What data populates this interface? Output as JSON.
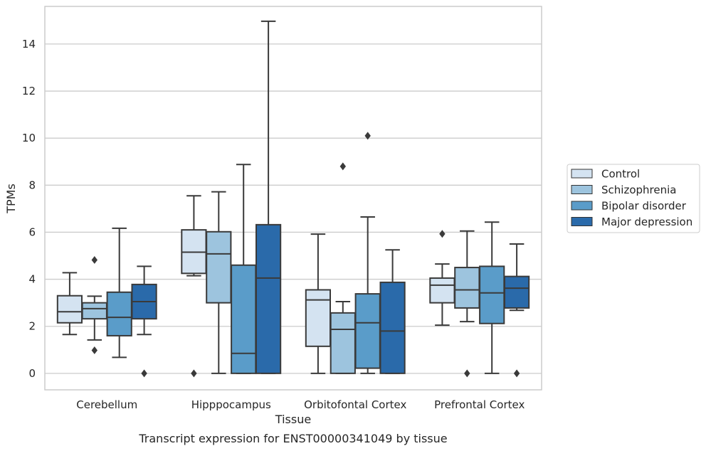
{
  "chart_data": {
    "type": "box",
    "title": "Transcript expression for ENST00000341049 by tissue",
    "xlabel": "Tissue",
    "ylabel": "TPMs",
    "ylim": [
      -0.7,
      15.6
    ],
    "yticks": [
      0,
      2,
      4,
      6,
      8,
      10,
      12,
      14
    ],
    "grid": true,
    "legend_position": "right",
    "categories": [
      "Cerebellum",
      "Hipppocampus",
      "Orbitofontal Cortex",
      "Prefrontal Cortex"
    ],
    "series": [
      {
        "name": "Control",
        "color": "#d4e3f1",
        "boxes": [
          {
            "whisker_low": 1.65,
            "q1": 2.15,
            "median": 2.62,
            "q3": 3.3,
            "whisker_high": 4.28,
            "outliers": []
          },
          {
            "whisker_low": 4.15,
            "q1": 4.25,
            "median": 5.15,
            "q3": 6.1,
            "whisker_high": 7.55,
            "outliers": [
              0
            ]
          },
          {
            "whisker_low": 0,
            "q1": 1.15,
            "median": 3.12,
            "q3": 3.55,
            "whisker_high": 5.92,
            "outliers": []
          },
          {
            "whisker_low": 2.05,
            "q1": 3.0,
            "median": 3.75,
            "q3": 4.05,
            "whisker_high": 4.65,
            "outliers": [
              5.93
            ]
          }
        ]
      },
      {
        "name": "Schizophrenia",
        "color": "#9dc4de",
        "boxes": [
          {
            "whisker_low": 1.42,
            "q1": 2.32,
            "median": 2.75,
            "q3": 3.0,
            "whisker_high": 3.28,
            "outliers": [
              4.82,
              0.98
            ]
          },
          {
            "whisker_low": 0,
            "q1": 3.0,
            "median": 5.08,
            "q3": 6.02,
            "whisker_high": 7.72,
            "outliers": []
          },
          {
            "whisker_low": 0,
            "q1": 0,
            "median": 1.87,
            "q3": 2.57,
            "whisker_high": 3.05,
            "outliers": [
              8.8
            ]
          },
          {
            "whisker_low": 2.2,
            "q1": 2.78,
            "median": 3.55,
            "q3": 4.5,
            "whisker_high": 6.05,
            "outliers": [
              0
            ]
          }
        ]
      },
      {
        "name": "Bipolar disorder",
        "color": "#5a9cc9",
        "boxes": [
          {
            "whisker_low": 0.68,
            "q1": 1.6,
            "median": 2.38,
            "q3": 3.45,
            "whisker_high": 6.17,
            "outliers": []
          },
          {
            "whisker_low": 0,
            "q1": 0,
            "median": 0.85,
            "q3": 4.6,
            "whisker_high": 8.88,
            "outliers": []
          },
          {
            "whisker_low": 0,
            "q1": 0.22,
            "median": 2.15,
            "q3": 3.38,
            "whisker_high": 6.65,
            "outliers": [
              10.1
            ]
          },
          {
            "whisker_low": 0,
            "q1": 2.12,
            "median": 3.42,
            "q3": 4.55,
            "whisker_high": 6.43,
            "outliers": []
          }
        ]
      },
      {
        "name": "Major depression",
        "color": "#2a6aaa",
        "boxes": [
          {
            "whisker_low": 1.65,
            "q1": 2.32,
            "median": 3.05,
            "q3": 3.78,
            "whisker_high": 4.55,
            "outliers": [
              0
            ]
          },
          {
            "whisker_low": 0,
            "q1": 0,
            "median": 4.05,
            "q3": 6.32,
            "whisker_high": 14.97,
            "outliers": []
          },
          {
            "whisker_low": 0,
            "q1": 0,
            "median": 1.8,
            "q3": 3.87,
            "whisker_high": 5.25,
            "outliers": []
          },
          {
            "whisker_low": 2.68,
            "q1": 2.78,
            "median": 3.62,
            "q3": 4.12,
            "whisker_high": 5.5,
            "outliers": [
              0
            ]
          }
        ]
      }
    ]
  }
}
